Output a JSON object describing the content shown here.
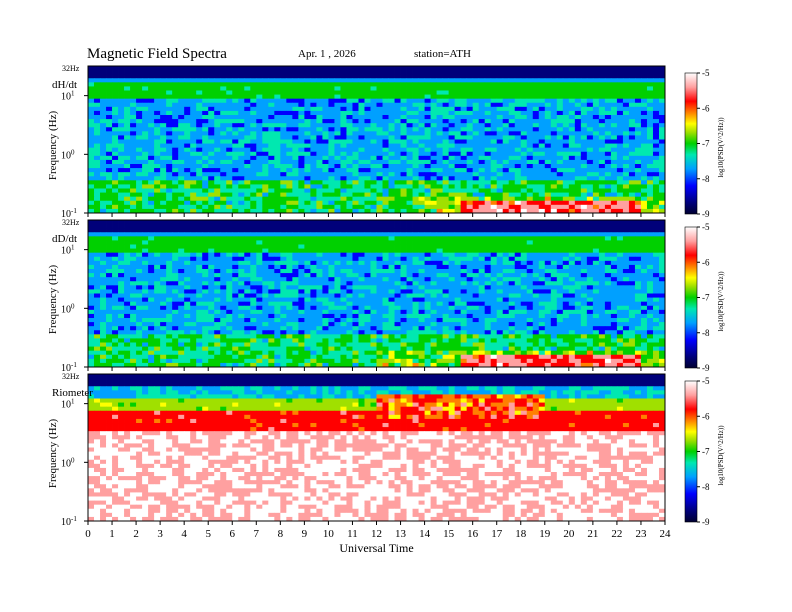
{
  "header": {
    "title": "Magnetic  Field  Spectra",
    "date": "Apr. 1  , 2026",
    "station": "station=ATH"
  },
  "colors": {
    "scale": [
      "#00007a",
      "#0000ff",
      "#00a0ff",
      "#00e8b0",
      "#00d000",
      "#a0e000",
      "#ffff00",
      "#ff8000",
      "#ff0000",
      "#ffa0a0",
      "#ffffff"
    ]
  },
  "chart_data": [
    {
      "type": "heatmap",
      "panel_label": "dH/dt",
      "top_label": "32Hz",
      "ylabel": "Frequency  (Hz)",
      "y_scale": "log",
      "ylim": [
        0.1,
        32
      ],
      "y_ticks": [
        {
          "base": "10",
          "exp": "1",
          "value": 10
        },
        {
          "base": "10",
          "exp": "0",
          "value": 1
        },
        {
          "base": "10",
          "exp": "-1",
          "value": 0.1
        }
      ],
      "xlim": [
        0,
        24
      ],
      "colorbar": {
        "label": "log10(PSD(V^2/Hz))",
        "ticks": [
          "-5",
          "-6",
          "-7",
          "-8",
          "-9"
        ],
        "range": [
          -9,
          -5
        ]
      }
    },
    {
      "type": "heatmap",
      "panel_label": "dD/dt",
      "top_label": "32Hz",
      "ylabel": "Frequency  (Hz)",
      "y_scale": "log",
      "ylim": [
        0.1,
        32
      ],
      "y_ticks": [
        {
          "base": "10",
          "exp": "1",
          "value": 10
        },
        {
          "base": "10",
          "exp": "0",
          "value": 1
        },
        {
          "base": "10",
          "exp": "-1",
          "value": 0.1
        }
      ],
      "xlim": [
        0,
        24
      ],
      "colorbar": {
        "label": "log10(PSD(V^2/Hz))",
        "ticks": [
          "-5",
          "-6",
          "-7",
          "-8",
          "-9"
        ],
        "range": [
          -9,
          -5
        ]
      }
    },
    {
      "type": "heatmap",
      "panel_label": "Riometer",
      "top_label": "32Hz",
      "ylabel": "Frequency  (Hz)",
      "y_scale": "log",
      "ylim": [
        0.1,
        32
      ],
      "y_ticks": [
        {
          "base": "10",
          "exp": "1",
          "value": 10
        },
        {
          "base": "10",
          "exp": "0",
          "value": 1
        },
        {
          "base": "10",
          "exp": "-1",
          "value": 0.1
        }
      ],
      "xlim": [
        0,
        24
      ],
      "x_ticks": [
        "0",
        "1",
        "2",
        "3",
        "4",
        "5",
        "6",
        "7",
        "8",
        "9",
        "10",
        "11",
        "12",
        "13",
        "14",
        "15",
        "16",
        "17",
        "18",
        "19",
        "20",
        "21",
        "22",
        "23",
        "24"
      ],
      "xlabel": "Universal  Time",
      "colorbar": {
        "label": "log10(PSD(V^2/Hz))",
        "ticks": [
          "-5",
          "-6",
          "-7",
          "-8",
          "-9"
        ],
        "range": [
          -9,
          -5
        ]
      }
    }
  ]
}
